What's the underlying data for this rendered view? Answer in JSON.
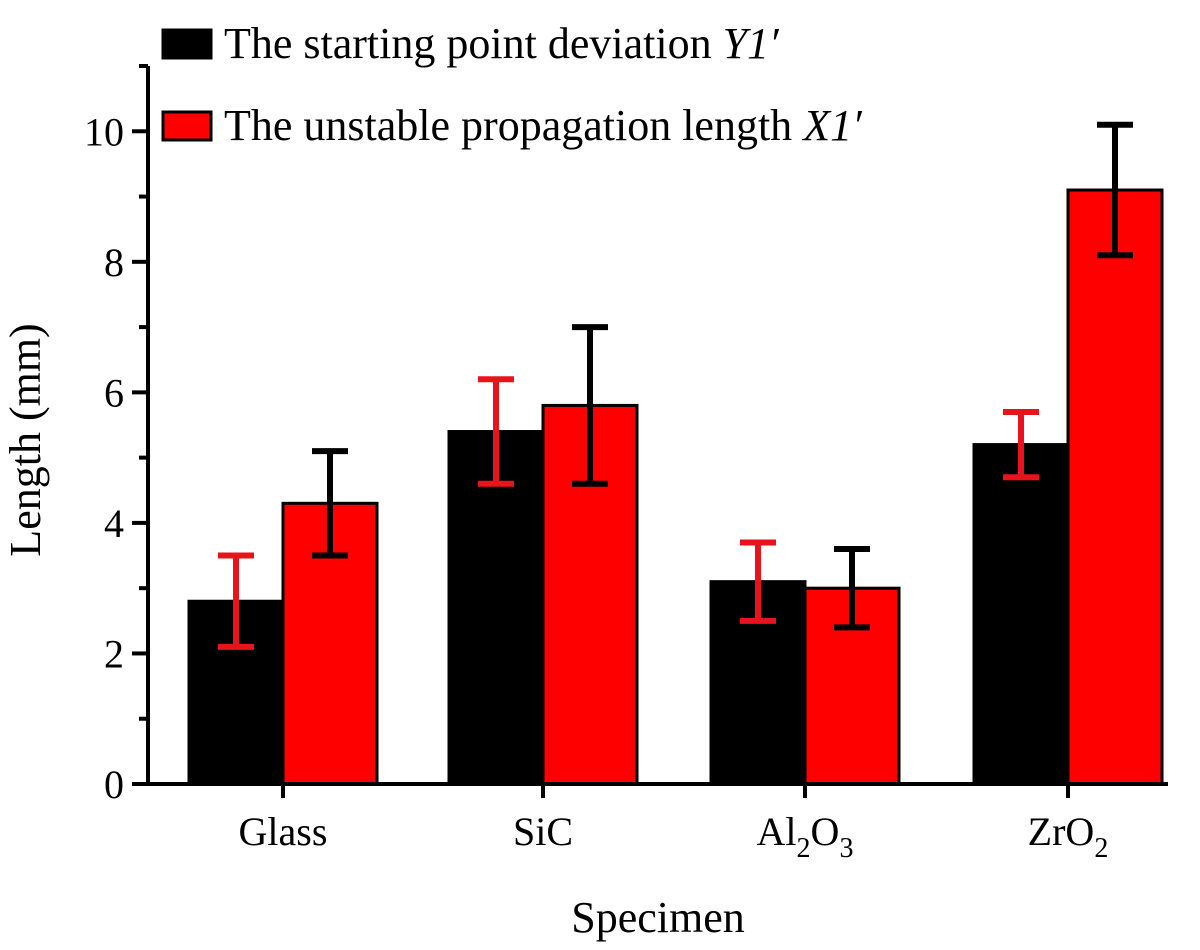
{
  "chart_data": {
    "type": "bar",
    "title": "",
    "xlabel": "Specimen",
    "ylabel": "Length (mm)",
    "ylim": [
      0,
      11
    ],
    "yticks": [
      0,
      2,
      4,
      6,
      8,
      10
    ],
    "categories": [
      {
        "base": "Glass",
        "sub1": "",
        "mid": "",
        "sub2": ""
      },
      {
        "base": "SiC",
        "sub1": "",
        "mid": "",
        "sub2": ""
      },
      {
        "base": "Al",
        "sub1": "2",
        "mid": "O",
        "sub2": "3"
      },
      {
        "base": "ZrO",
        "sub1": "2",
        "mid": "",
        "sub2": ""
      }
    ],
    "series": [
      {
        "name": "The starting point deviation",
        "name_symbol": "Y1′",
        "color": "#000000",
        "error_color": "#e8141c",
        "values": [
          2.8,
          5.4,
          3.1,
          5.2
        ],
        "errors": [
          0.7,
          0.8,
          0.6,
          0.5
        ]
      },
      {
        "name": "The unstable propagation length",
        "name_symbol": "X1′",
        "color": "#ff0000",
        "error_color": "#000000",
        "values": [
          4.3,
          5.8,
          3.0,
          9.1
        ],
        "errors": [
          0.8,
          1.2,
          0.6,
          1.0
        ]
      }
    ],
    "grid": false,
    "legend_position": "top-left"
  }
}
